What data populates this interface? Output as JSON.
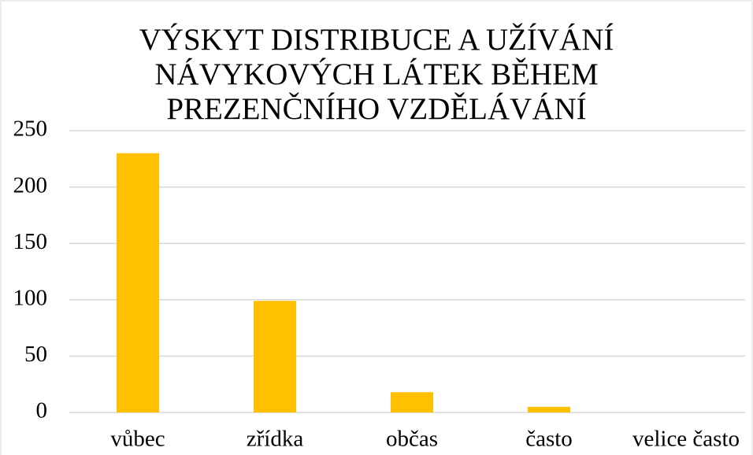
{
  "chart_data": {
    "type": "bar",
    "title": [
      "VÝSKYT DISTRIBUCE A UŽÍVÁNÍ",
      "NÁVYKOVÝCH LÁTEK BĚHEM",
      "PREZENČNÍHO VZDĚLÁVÁNÍ"
    ],
    "categories": [
      "vůbec",
      "zřídka",
      "občas",
      "často",
      "velice často"
    ],
    "values": [
      230,
      99,
      18,
      5,
      0
    ],
    "color": "#ffc000",
    "ylim": [
      0,
      250
    ],
    "yticks": [
      0,
      50,
      100,
      150,
      200,
      250
    ],
    "grid": true
  }
}
